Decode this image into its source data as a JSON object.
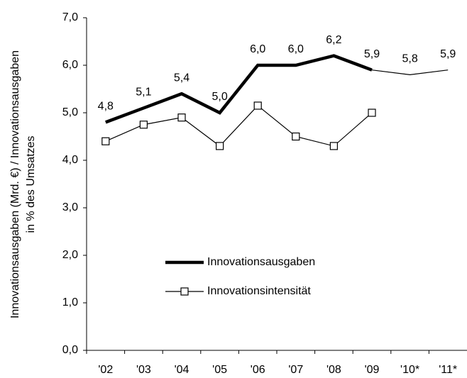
{
  "chart_data": {
    "type": "line",
    "y_label": [
      "Innovationsausgaben (Mrd. €) / Innovationsausgaben",
      "in % des Umsatzes"
    ],
    "categories": [
      "'02",
      "'03",
      "'04",
      "'05",
      "'06",
      "'07",
      "'08",
      "'09",
      "'10*",
      "'11*"
    ],
    "series": [
      {
        "name": "Innovationsausgaben",
        "color": "#000000",
        "values": [
          4.8,
          5.1,
          5.4,
          5.0,
          6.0,
          6.0,
          6.2,
          5.9,
          5.8,
          5.9
        ],
        "value_labels": [
          "4,8",
          "5,1",
          "5,4",
          "5,0",
          "6,0",
          "6,0",
          "6,2",
          "5,9",
          "5,8",
          "5,9"
        ],
        "projected": [
          false,
          false,
          false,
          false,
          false,
          false,
          false,
          false,
          true,
          true
        ]
      },
      {
        "name": "Innovationsintensität",
        "color": "#000000",
        "marker": "square",
        "values": [
          4.4,
          4.75,
          4.9,
          4.3,
          5.15,
          4.5,
          4.3,
          5.0,
          null,
          null
        ]
      }
    ],
    "ylim": [
      0,
      7
    ],
    "yticks": [
      {
        "value": 0,
        "label": "0,0"
      },
      {
        "value": 1,
        "label": "1,0"
      },
      {
        "value": 2,
        "label": "2,0"
      },
      {
        "value": 3,
        "label": "3,0"
      },
      {
        "value": 4,
        "label": "4,0"
      },
      {
        "value": 5,
        "label": "5,0"
      },
      {
        "value": 6,
        "label": "6,0"
      },
      {
        "value": 7,
        "label": "7,0"
      }
    ],
    "grid": false
  }
}
